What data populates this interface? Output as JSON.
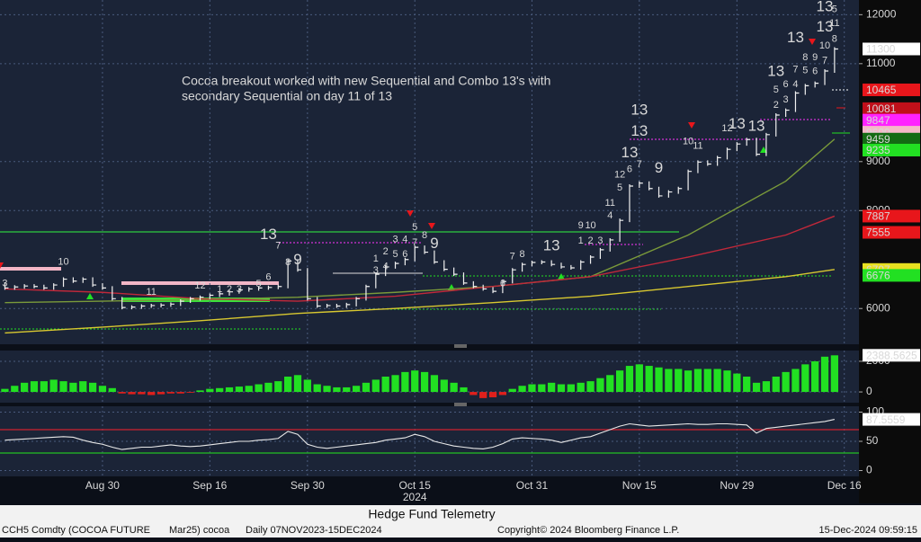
{
  "chart_data": [
    {
      "type": "ohlc",
      "annotation": [
        "Cocoa breakout worked with new Sequential and Combo 13's with",
        "secondary Sequential on day 11 of 13"
      ],
      "categories": [
        null,
        null,
        null,
        null,
        null,
        null,
        null,
        null,
        null,
        null,
        "Aug 30",
        null,
        null,
        null,
        null,
        null,
        null,
        null,
        null,
        null,
        null,
        "Sep 16",
        null,
        null,
        null,
        null,
        null,
        null,
        null,
        null,
        null,
        "Sep 30",
        null,
        null,
        null,
        null,
        null,
        null,
        null,
        null,
        null,
        null,
        "Oct 15",
        null,
        null,
        null,
        null,
        null,
        null,
        null,
        null,
        null,
        null,
        null,
        "Oct 31",
        null,
        null,
        null,
        null,
        null,
        null,
        null,
        null,
        null,
        null,
        "Nov 15",
        null,
        null,
        null,
        null,
        null,
        null,
        null,
        null,
        null,
        "Nov 29",
        null,
        null,
        null,
        null,
        null,
        null,
        null,
        null,
        null,
        null,
        "Dec 16",
        null
      ],
      "year_label": "2024",
      "values": [
        6420,
        6440,
        6460,
        6450,
        6420,
        6480,
        6600,
        6560,
        6600,
        6480,
        6420,
        6200,
        6020,
        6030,
        6050,
        6060,
        6070,
        6090,
        6150,
        6200,
        6230,
        6270,
        6300,
        6340,
        6380,
        6400,
        6420,
        6430,
        6450,
        6970,
        6790,
        6200,
        6050,
        6060,
        6050,
        6080,
        6200,
        6450,
        6700,
        6850,
        6920,
        7000,
        7250,
        7150,
        6950,
        6800,
        6700,
        6520,
        6450,
        6400,
        6350,
        6550,
        6790,
        6900,
        6940,
        6950,
        6900,
        6850,
        6830,
        6950,
        7050,
        7200,
        7400,
        7800,
        8500,
        8560,
        8450,
        8300,
        8380,
        8450,
        8800,
        8990,
        8950,
        9080,
        9250,
        9360,
        9450,
        9150,
        9550,
        9950,
        10050,
        10400,
        10550,
        10600,
        10850,
        11300,
        null,
        null
      ],
      "color": "#f0f0f0",
      "series": [
        {
          "color": "#7a9a3a",
          "x": [
            0,
            10,
            20,
            30,
            40,
            50,
            60,
            70,
            80,
            85
          ],
          "values": [
            6120,
            6150,
            6180,
            6230,
            6330,
            6450,
            6650,
            7500,
            8600,
            9459
          ]
        },
        {
          "color": "#c0283a",
          "x": [
            0,
            10,
            20,
            30,
            40,
            50,
            60,
            70,
            80,
            85
          ],
          "values": [
            6400,
            6330,
            6200,
            6150,
            6250,
            6450,
            6650,
            7050,
            7500,
            7887
          ]
        },
        {
          "color": "#d8c830",
          "x": [
            0,
            10,
            20,
            30,
            40,
            50,
            60,
            70,
            80,
            85
          ],
          "values": [
            5500,
            5620,
            5750,
            5900,
            6000,
            6120,
            6250,
            6450,
            6650,
            6797
          ]
        }
      ],
      "price_tags": [
        {
          "value": 10465,
          "color": "#e8161b"
        },
        {
          "value": 10081,
          "color": "#c0101a"
        },
        {
          "value": 9847,
          "color": "#ff22ff"
        },
        {
          "value": 9600,
          "color": "#f5b8c8"
        },
        {
          "value": 9459,
          "color": "#136b13"
        },
        {
          "value": 9235,
          "color": "#22e022"
        },
        {
          "value": 7887,
          "color": "#e8161b"
        },
        {
          "value": 7555,
          "color": "#e8161b"
        },
        {
          "value": 6797,
          "color": "#e8e020"
        },
        {
          "value": 6676,
          "color": "#22e022"
        }
      ],
      "ylim": [
        5270,
        12300
      ],
      "yticks": [
        6000,
        8000,
        9000,
        11000,
        12000
      ],
      "grid": true,
      "td_counts": [
        {
          "text": "10",
          "x": 6,
          "y": 6950,
          "color": "#e8161b"
        },
        {
          "text": "3",
          "x": 0,
          "y": 6510,
          "color": "#f0a030"
        },
        {
          "text": "11",
          "x": 15,
          "y": 6330,
          "color": "#e8161b"
        },
        {
          "text": "12",
          "x": 20,
          "y": 6460,
          "color": "#e8161b"
        },
        {
          "text": "1",
          "x": 22,
          "y": 6390,
          "color": "#22e022"
        },
        {
          "text": "2",
          "x": 23,
          "y": 6390,
          "color": "#22e022"
        },
        {
          "text": "3",
          "x": 24,
          "y": 6390,
          "color": "#22e022"
        },
        {
          "text": "5",
          "x": 26,
          "y": 6500,
          "color": "#22e022"
        },
        {
          "text": "6",
          "x": 27,
          "y": 6640,
          "color": "#22e022"
        },
        {
          "text": "13",
          "x": 27,
          "y": 7500,
          "color": "#e8161b",
          "big": true
        },
        {
          "text": "7",
          "x": 28,
          "y": 7280,
          "color": "#22e022"
        },
        {
          "text": "8",
          "x": 29,
          "y": 6940,
          "color": "#22e022"
        },
        {
          "text": "9",
          "x": 30,
          "y": 6990,
          "color": "#22e022",
          "big": true
        },
        {
          "text": "1",
          "x": 38,
          "y": 7010,
          "color": "#e8161b"
        },
        {
          "text": "2",
          "x": 39,
          "y": 7160,
          "color": "#e8161b"
        },
        {
          "text": "3",
          "x": 40,
          "y": 7410,
          "color": "#e8161b"
        },
        {
          "text": "4",
          "x": 41,
          "y": 7410,
          "color": "#e8161b"
        },
        {
          "text": "5",
          "x": 42,
          "y": 7650,
          "color": "#e8161b"
        },
        {
          "text": "3",
          "x": 38,
          "y": 6770,
          "color": "#22e022"
        },
        {
          "text": "4",
          "x": 39,
          "y": 6860,
          "color": "#22e022"
        },
        {
          "text": "5",
          "x": 40,
          "y": 7100,
          "color": "#22e022"
        },
        {
          "text": "6",
          "x": 41,
          "y": 7100,
          "color": "#22e022"
        },
        {
          "text": "7",
          "x": 42,
          "y": 7340,
          "color": "#22e022"
        },
        {
          "text": "8",
          "x": 43,
          "y": 7490,
          "color": "#22e022"
        },
        {
          "text": "9",
          "x": 44,
          "y": 7320,
          "color": "#22e022",
          "big": true
        },
        {
          "text": "6",
          "x": 51,
          "y": 6510,
          "color": "#e8161b"
        },
        {
          "text": "7",
          "x": 52,
          "y": 7060,
          "color": "#e8161b"
        },
        {
          "text": "8",
          "x": 53,
          "y": 7100,
          "color": "#e8161b"
        },
        {
          "text": "13",
          "x": 56,
          "y": 7270,
          "color": "#f0a030",
          "big": true
        },
        {
          "text": "1",
          "x": 59,
          "y": 7380,
          "color": "#22e022"
        },
        {
          "text": "2",
          "x": 60,
          "y": 7380,
          "color": "#22e022"
        },
        {
          "text": "3",
          "x": 61,
          "y": 7380,
          "color": "#22e022"
        },
        {
          "text": "9",
          "x": 59,
          "y": 7690,
          "color": "#e8161b"
        },
        {
          "text": "10",
          "x": 60,
          "y": 7690,
          "color": "#e8161b"
        },
        {
          "text": "11",
          "x": 62,
          "y": 8150,
          "color": "#e8161b"
        },
        {
          "text": "12",
          "x": 63,
          "y": 8730,
          "color": "#e8161b"
        },
        {
          "text": "13",
          "x": 64,
          "y": 9170,
          "color": "#e8161b",
          "big": true
        },
        {
          "text": "4",
          "x": 62,
          "y": 7890,
          "color": "#22e022"
        },
        {
          "text": "5",
          "x": 63,
          "y": 8460,
          "color": "#22e022"
        },
        {
          "text": "6",
          "x": 64,
          "y": 8840,
          "color": "#22e022"
        },
        {
          "text": "7",
          "x": 65,
          "y": 8940,
          "color": "#22e022"
        },
        {
          "text": "9",
          "x": 67,
          "y": 8860,
          "color": "#22e022",
          "big": true
        },
        {
          "text": "13",
          "x": 65,
          "y": 9610,
          "color": "#f0a030",
          "big": true
        },
        {
          "text": "13",
          "x": 65,
          "y": 10040,
          "color": "#d020e0",
          "big": true
        },
        {
          "text": "10",
          "x": 70,
          "y": 9410,
          "color": "#e8161b"
        },
        {
          "text": "11",
          "x": 71,
          "y": 9320,
          "color": "#e8161b"
        },
        {
          "text": "12",
          "x": 74,
          "y": 9670,
          "color": "#e8161b"
        },
        {
          "text": "13",
          "x": 75,
          "y": 9760,
          "color": "#e8161b",
          "big": true
        },
        {
          "text": "13",
          "x": 77,
          "y": 9710,
          "color": "#d020e0",
          "big": true
        },
        {
          "text": "13",
          "x": 79,
          "y": 10830,
          "color": "#d020e0",
          "big": true
        },
        {
          "text": "5",
          "x": 79,
          "y": 10460,
          "color": "#e8161b"
        },
        {
          "text": "6",
          "x": 80,
          "y": 10570,
          "color": "#e8161b"
        },
        {
          "text": "7",
          "x": 81,
          "y": 10880,
          "color": "#e8161b"
        },
        {
          "text": "8",
          "x": 82,
          "y": 11120,
          "color": "#e8161b"
        },
        {
          "text": "9",
          "x": 83,
          "y": 11120,
          "color": "#e8161b"
        },
        {
          "text": "10",
          "x": 84,
          "y": 11360,
          "color": "#e8161b"
        },
        {
          "text": "11",
          "x": 85,
          "y": 11820,
          "color": "#e8161b"
        },
        {
          "text": "2",
          "x": 79,
          "y": 10150,
          "color": "#22e022"
        },
        {
          "text": "3",
          "x": 80,
          "y": 10260,
          "color": "#22e022"
        },
        {
          "text": "4",
          "x": 81,
          "y": 10570,
          "color": "#22e022"
        },
        {
          "text": "5",
          "x": 82,
          "y": 10860,
          "color": "#22e022"
        },
        {
          "text": "6",
          "x": 83,
          "y": 10840,
          "color": "#22e022"
        },
        {
          "text": "7",
          "x": 84,
          "y": 11060,
          "color": "#22e022"
        },
        {
          "text": "8",
          "x": 85,
          "y": 11500,
          "color": "#22e022"
        },
        {
          "text": "13",
          "x": 81,
          "y": 11520,
          "color": "#d020e0",
          "big": true
        },
        {
          "text": "13",
          "x": 84,
          "y": 11740,
          "color": "#f0a030",
          "big": true
        },
        {
          "text": "13",
          "x": 84,
          "y": 12150,
          "color": "#d020e0",
          "big": true
        },
        {
          "text": "5",
          "x": 85,
          "y": 12110,
          "color": "#22e022"
        }
      ]
    },
    {
      "type": "bar",
      "values": [
        200,
        400,
        600,
        700,
        700,
        800,
        700,
        600,
        700,
        600,
        400,
        250,
        -100,
        -150,
        -150,
        -200,
        -150,
        -100,
        -100,
        -50,
        100,
        200,
        250,
        300,
        350,
        400,
        500,
        600,
        700,
        1000,
        1100,
        800,
        500,
        400,
        300,
        300,
        400,
        600,
        800,
        1000,
        1100,
        1300,
        1400,
        1300,
        1100,
        800,
        600,
        300,
        -200,
        -400,
        -350,
        -200,
        200,
        400,
        500,
        500,
        600,
        500,
        500,
        600,
        700,
        900,
        1100,
        1400,
        1700,
        1800,
        1700,
        1600,
        1500,
        1500,
        1400,
        1500,
        1500,
        1500,
        1400,
        1200,
        1000,
        600,
        700,
        1000,
        1300,
        1500,
        1800,
        2000,
        2300,
        2388.5625,
        null,
        null
      ],
      "color_up": "#22e022",
      "color_down": "#e0201c",
      "ylim": [
        -700,
        2700
      ],
      "yticks": [
        0,
        2000
      ]
    },
    {
      "type": "line",
      "values": [
        52,
        53,
        54,
        55,
        56,
        57,
        58,
        57,
        52,
        48,
        45,
        40,
        36,
        38,
        40,
        40,
        42,
        44,
        42,
        41,
        42,
        44,
        46,
        48,
        50,
        50,
        52,
        53,
        55,
        67,
        62,
        45,
        40,
        38,
        40,
        42,
        44,
        46,
        48,
        52,
        54,
        56,
        62,
        58,
        50,
        46,
        42,
        40,
        38,
        37,
        40,
        46,
        54,
        56,
        55,
        54,
        52,
        48,
        52,
        56,
        58,
        64,
        70,
        76,
        80,
        78,
        76,
        77,
        78,
        79,
        80,
        79,
        79,
        80,
        80,
        79,
        78,
        64,
        72,
        74,
        76,
        78,
        80,
        82,
        84,
        87.5559,
        null,
        null
      ],
      "color": "#e8e8e8",
      "levels": [
        {
          "value": 70,
          "color": "#d02030"
        },
        {
          "value": 30,
          "color": "#22c022"
        }
      ],
      "ylim": [
        -10,
        110
      ],
      "yticks": [
        0,
        50,
        100
      ]
    }
  ],
  "footer": {
    "caption": "Hedge Fund Telemetry",
    "ticker": "CCH5 Comdty (COCOA FUTURE",
    "contract": "Mar25) cocoa",
    "range": "Daily 07NOV2023-15DEC2024",
    "copyright": "Copyright© 2024 Bloomberg Finance L.P.",
    "timestamp": "15-Dec-2024 09:59:15"
  }
}
